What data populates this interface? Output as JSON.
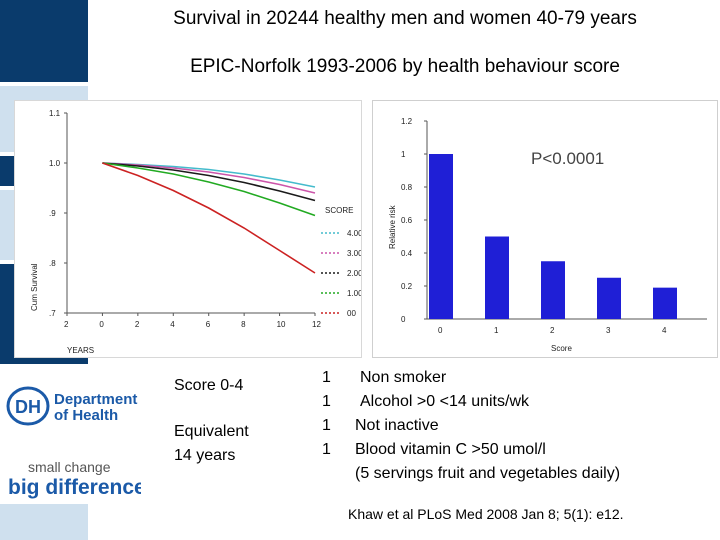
{
  "slide": {
    "title": "Survival in 20244 healthy men and women 40-79 years",
    "subtitle": "EPIC-Norfolk 1993-2006 by  health behaviour score",
    "colors": {
      "band_dark": "#0a3b6c",
      "band_light": "#cfe0ee",
      "bar_fill": "#1f1fd6",
      "dh_blue": "#1b5aa8"
    }
  },
  "left_chart": {
    "ylabel": "Cum Survival",
    "xlabel": "YEARS",
    "legend_title": "SCORE",
    "legend_items": [
      "4.00",
      "3.00",
      "2.00",
      "1.00",
      "00"
    ],
    "legend_colors": [
      "#44bbcc",
      "#cc55aa",
      "#1a1a1a",
      "#22aa22",
      "#cc2222"
    ]
  },
  "right_chart": {
    "pvalue": "P<0.0001"
  },
  "bottom": {
    "score": "Score 0-4",
    "equiv_line1": "Equivalent",
    "equiv_line2": "14 years",
    "item1_num": "1",
    "item1_text": "Non smoker",
    "item2_num": "1",
    "item2_text": "Alcohol >0 <14 units/wk",
    "item3_num": "1",
    "item3_text": "Not inactive",
    "item4_num": "1",
    "item4_text": "Blood vitamin C >50 umol/l",
    "item4_sub": "(5 servings fruit and vegetables daily)",
    "citation": "Khaw et al PLoS Med 2008 Jan 8; 5(1): e12."
  },
  "logos": {
    "dh_mark": "DH",
    "dh_line1": "Department",
    "dh_line2": "of Health",
    "sc_line1": "small change",
    "sc_line2": "big difference"
  },
  "chart_data": [
    {
      "type": "line",
      "title": "",
      "xlabel": "YEARS",
      "ylabel": "Cum Survival",
      "x_ticks": [
        "2",
        "0",
        "2",
        "4",
        "6",
        "8",
        "10",
        "12"
      ],
      "y_ticks": [
        ".7",
        ".8",
        ".9",
        "1.0",
        "1.1"
      ],
      "xlim": [
        -2,
        12
      ],
      "ylim": [
        0.7,
        1.1
      ],
      "legend_title": "SCORE",
      "series": [
        {
          "name": "4.00",
          "x": [
            0,
            2,
            4,
            6,
            8,
            10,
            12
          ],
          "values": [
            1.0,
            0.997,
            0.993,
            0.987,
            0.978,
            0.966,
            0.952
          ]
        },
        {
          "name": "3.00",
          "x": [
            0,
            2,
            4,
            6,
            8,
            10,
            12
          ],
          "values": [
            1.0,
            0.996,
            0.99,
            0.982,
            0.971,
            0.957,
            0.94
          ]
        },
        {
          "name": "2.00",
          "x": [
            0,
            2,
            4,
            6,
            8,
            10,
            12
          ],
          "values": [
            1.0,
            0.994,
            0.986,
            0.975,
            0.961,
            0.944,
            0.925
          ]
        },
        {
          "name": "1.00",
          "x": [
            0,
            2,
            4,
            6,
            8,
            10,
            12
          ],
          "values": [
            1.0,
            0.99,
            0.978,
            0.962,
            0.943,
            0.92,
            0.895
          ]
        },
        {
          "name": "00",
          "x": [
            0,
            2,
            4,
            6,
            8,
            10,
            12
          ],
          "values": [
            1.0,
            0.975,
            0.945,
            0.91,
            0.87,
            0.825,
            0.78
          ]
        }
      ],
      "grid": false,
      "legend_position": "right"
    },
    {
      "type": "bar",
      "title": "",
      "xlabel": "Score",
      "ylabel": "Relative risk",
      "categories": [
        "0",
        "1",
        "2",
        "3",
        "4"
      ],
      "values": [
        1.0,
        0.5,
        0.35,
        0.25,
        0.19
      ],
      "y_ticks": [
        "0",
        "0.2",
        "0.4",
        "0.6",
        "0.8",
        "1",
        "1.2"
      ],
      "ylim": [
        0,
        1.2
      ],
      "annotation": "P<0.0001",
      "grid": false
    }
  ]
}
